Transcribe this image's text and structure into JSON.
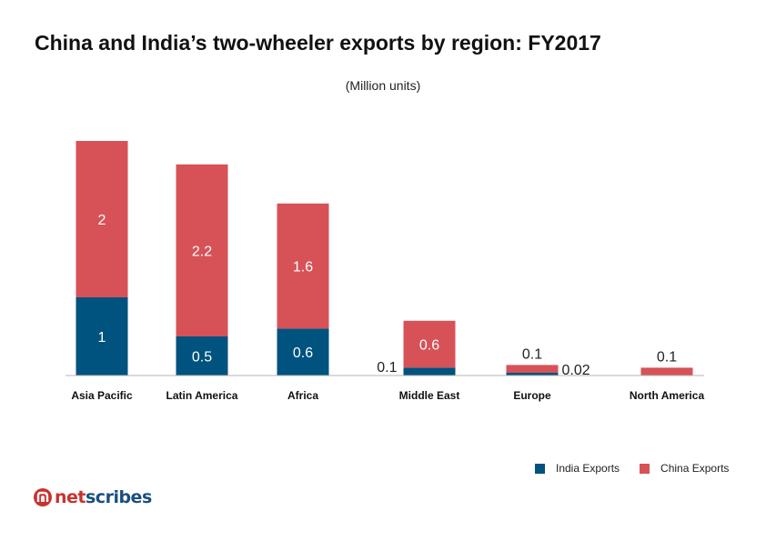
{
  "colors": {
    "india": "#00527f",
    "china": "#d65257",
    "axis": "#b4b4b4",
    "logo_red": "#c8322f",
    "logo_blue": "#1b4f80"
  },
  "logo": {
    "part1": "net",
    "part2": "scribes"
  },
  "chart_data": {
    "type": "bar",
    "stacked": true,
    "title": "China and India’s two-wheeler exports by region: FY2017",
    "subtitle": "(Million units)",
    "categories": [
      "Asia Pacific",
      "Latin America",
      "Africa",
      "Middle East",
      "Europe",
      "North America"
    ],
    "series": [
      {
        "name": "India Exports",
        "values": [
          1,
          0.5,
          0.6,
          0.1,
          0.02,
          0
        ],
        "labels": [
          "1",
          "0.5",
          "0.6",
          "0.1",
          "0.02",
          ""
        ]
      },
      {
        "name": "China Exports",
        "values": [
          2,
          2.2,
          1.6,
          0.6,
          0.1,
          0.1
        ],
        "labels": [
          "2",
          "2.2",
          "1.6",
          "0.6",
          "0.1",
          "0.1"
        ]
      }
    ],
    "ylim": [
      0,
      3.0
    ],
    "legend": "bottom-right",
    "grid": false
  }
}
